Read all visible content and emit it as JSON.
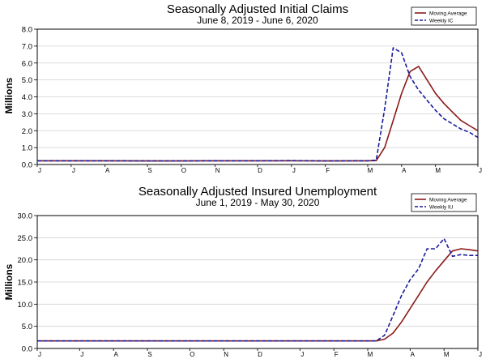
{
  "chart_data": [
    {
      "type": "line",
      "title": "Seasonally Adjusted Initial Claims",
      "subtitle": "June 8, 2019 - June 6, 2020",
      "ylabel": "Millions",
      "ylim": [
        0,
        8
      ],
      "yticks": [
        "0.0",
        "1.0",
        "2.0",
        "3.0",
        "4.0",
        "5.0",
        "6.0",
        "7.0",
        "8.0"
      ],
      "x_tick_labels": [
        "J",
        "J",
        "A",
        "S",
        "O",
        "N",
        "D",
        "J",
        "F",
        "M",
        "A",
        "M",
        "J"
      ],
      "x_tick_dates": [
        "2019-06-08",
        "2019-07-06",
        "2019-08-03",
        "2019-09-07",
        "2019-10-05",
        "2019-11-02",
        "2019-12-07",
        "2020-01-04",
        "2020-02-01",
        "2020-03-07",
        "2020-04-04",
        "2020-05-02",
        "2020-06-06"
      ],
      "legend": {
        "placement": "top-right"
      },
      "series": [
        {
          "name": "Moving Average",
          "color": "#8b1a1a",
          "style": "solid",
          "points": [
            [
              "2019-06-08",
              0.22
            ],
            [
              "2019-07-06",
              0.22
            ],
            [
              "2019-08-03",
              0.22
            ],
            [
              "2019-09-07",
              0.21
            ],
            [
              "2019-10-05",
              0.21
            ],
            [
              "2019-11-02",
              0.22
            ],
            [
              "2019-12-07",
              0.22
            ],
            [
              "2020-01-04",
              0.22
            ],
            [
              "2020-02-01",
              0.21
            ],
            [
              "2020-03-07",
              0.22
            ],
            [
              "2020-03-14",
              0.23
            ],
            [
              "2020-03-21",
              1.0
            ],
            [
              "2020-03-28",
              2.6
            ],
            [
              "2020-04-04",
              4.2
            ],
            [
              "2020-04-11",
              5.5
            ],
            [
              "2020-04-18",
              5.8
            ],
            [
              "2020-04-25",
              5.0
            ],
            [
              "2020-05-02",
              4.2
            ],
            [
              "2020-05-09",
              3.6
            ],
            [
              "2020-05-16",
              3.1
            ],
            [
              "2020-05-23",
              2.6
            ],
            [
              "2020-05-30",
              2.3
            ],
            [
              "2020-06-06",
              2.0
            ]
          ]
        },
        {
          "name": "Weekly IC",
          "color": "#1a1a9c",
          "style": "dashed",
          "points": [
            [
              "2019-06-08",
              0.22
            ],
            [
              "2019-07-06",
              0.22
            ],
            [
              "2019-08-03",
              0.22
            ],
            [
              "2019-09-07",
              0.21
            ],
            [
              "2019-10-05",
              0.21
            ],
            [
              "2019-11-02",
              0.22
            ],
            [
              "2019-12-07",
              0.22
            ],
            [
              "2020-01-04",
              0.23
            ],
            [
              "2020-02-01",
              0.21
            ],
            [
              "2020-03-07",
              0.22
            ],
            [
              "2020-03-14",
              0.26
            ],
            [
              "2020-03-21",
              3.3
            ],
            [
              "2020-03-28",
              6.9
            ],
            [
              "2020-04-04",
              6.6
            ],
            [
              "2020-04-11",
              5.2
            ],
            [
              "2020-04-18",
              4.4
            ],
            [
              "2020-04-25",
              3.8
            ],
            [
              "2020-05-02",
              3.2
            ],
            [
              "2020-05-09",
              2.7
            ],
            [
              "2020-05-16",
              2.4
            ],
            [
              "2020-05-23",
              2.1
            ],
            [
              "2020-05-30",
              1.9
            ],
            [
              "2020-06-06",
              1.6
            ]
          ]
        }
      ]
    },
    {
      "type": "line",
      "title": "Seasonally Adjusted Insured Unemployment",
      "subtitle": "June 1, 2019 - May 30, 2020",
      "ylabel": "Millions",
      "ylim": [
        0,
        30
      ],
      "yticks": [
        "0.0",
        "5.0",
        "10.0",
        "15.0",
        "20.0",
        "25.0",
        "30.0"
      ],
      "x_tick_labels": [
        "J",
        "J",
        "A",
        "S",
        "O",
        "N",
        "D",
        "J",
        "F",
        "M",
        "A",
        "M",
        "J"
      ],
      "x_tick_dates": [
        "2019-06-01",
        "2019-07-06",
        "2019-08-03",
        "2019-08-31",
        "2019-10-05",
        "2019-11-02",
        "2019-11-30",
        "2020-01-04",
        "2020-02-01",
        "2020-02-29",
        "2020-04-04",
        "2020-05-02",
        "2020-05-30"
      ],
      "legend": {
        "placement": "top-right"
      },
      "series": [
        {
          "name": "Moving Average",
          "color": "#8b1a1a",
          "style": "solid",
          "points": [
            [
              "2019-06-01",
              1.7
            ],
            [
              "2019-07-06",
              1.7
            ],
            [
              "2019-08-03",
              1.7
            ],
            [
              "2019-08-31",
              1.7
            ],
            [
              "2019-10-05",
              1.7
            ],
            [
              "2019-11-02",
              1.7
            ],
            [
              "2019-11-30",
              1.7
            ],
            [
              "2020-01-04",
              1.7
            ],
            [
              "2020-02-01",
              1.7
            ],
            [
              "2020-02-29",
              1.7
            ],
            [
              "2020-03-07",
              1.7
            ],
            [
              "2020-03-14",
              2.1
            ],
            [
              "2020-03-21",
              3.5
            ],
            [
              "2020-03-28",
              6.0
            ],
            [
              "2020-04-04",
              9.0
            ],
            [
              "2020-04-11",
              12.0
            ],
            [
              "2020-04-18",
              15.0
            ],
            [
              "2020-04-25",
              17.5
            ],
            [
              "2020-05-02",
              19.8
            ],
            [
              "2020-05-09",
              22.0
            ],
            [
              "2020-05-16",
              22.5
            ],
            [
              "2020-05-23",
              22.3
            ],
            [
              "2020-05-30",
              22.0
            ]
          ]
        },
        {
          "name": "Weekly IU",
          "color": "#1a1a9c",
          "style": "dashed",
          "points": [
            [
              "2019-06-01",
              1.7
            ],
            [
              "2019-07-06",
              1.7
            ],
            [
              "2019-08-03",
              1.7
            ],
            [
              "2019-08-31",
              1.7
            ],
            [
              "2019-10-05",
              1.7
            ],
            [
              "2019-11-02",
              1.7
            ],
            [
              "2019-11-30",
              1.7
            ],
            [
              "2020-01-04",
              1.7
            ],
            [
              "2020-02-01",
              1.7
            ],
            [
              "2020-02-29",
              1.7
            ],
            [
              "2020-03-07",
              1.7
            ],
            [
              "2020-03-14",
              3.0
            ],
            [
              "2020-03-21",
              7.5
            ],
            [
              "2020-03-28",
              12.0
            ],
            [
              "2020-04-04",
              15.5
            ],
            [
              "2020-04-11",
              18.0
            ],
            [
              "2020-04-18",
              22.5
            ],
            [
              "2020-04-25",
              22.5
            ],
            [
              "2020-05-02",
              24.8
            ],
            [
              "2020-05-09",
              20.8
            ],
            [
              "2020-05-16",
              21.2
            ],
            [
              "2020-05-23",
              21.0
            ],
            [
              "2020-05-30",
              21.0
            ]
          ]
        }
      ]
    }
  ]
}
